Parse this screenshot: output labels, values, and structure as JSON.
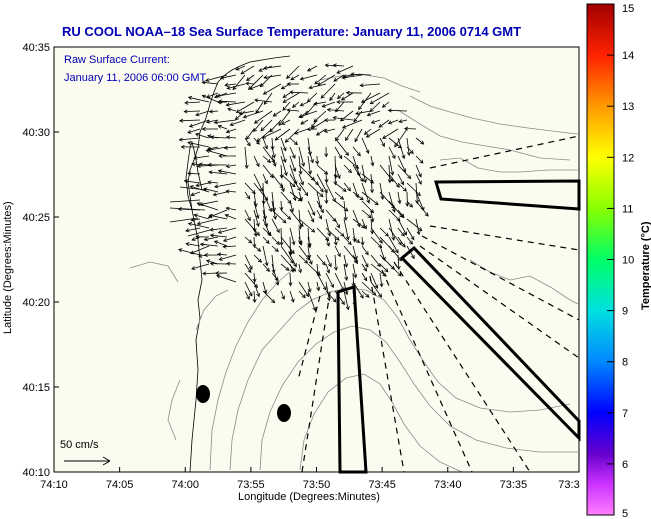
{
  "map": {
    "title": "RU COOL  NOAA–18  Sea Surface Temperature:  January 11, 2006 0714 GMT",
    "legend_line1": "Raw Surface Current:",
    "legend_line2": "January 11, 2006 06:00 GMT",
    "scale_label": "50 cm/s",
    "xlabel": "Longitude (Degrees:Minutes)",
    "ylabel": "Latitude (Degrees:Minutes)",
    "x_ticks": [
      "74:10",
      "74:05",
      "74:00",
      "73:55",
      "73:50",
      "73:45",
      "73:40",
      "73:35",
      "73:3"
    ],
    "y_ticks": [
      "40:35",
      "40:30",
      "40:25",
      "40:20",
      "40:15",
      "40:10"
    ],
    "land_color": "#fbfbf0",
    "vector_color": "#000000"
  },
  "colorbar": {
    "label": "Temperature (°C)",
    "ticks": [
      "15",
      "14",
      "13",
      "12",
      "11",
      "10",
      "9",
      "8",
      "7",
      "6",
      "5"
    ],
    "min": 5,
    "max": 15
  }
}
